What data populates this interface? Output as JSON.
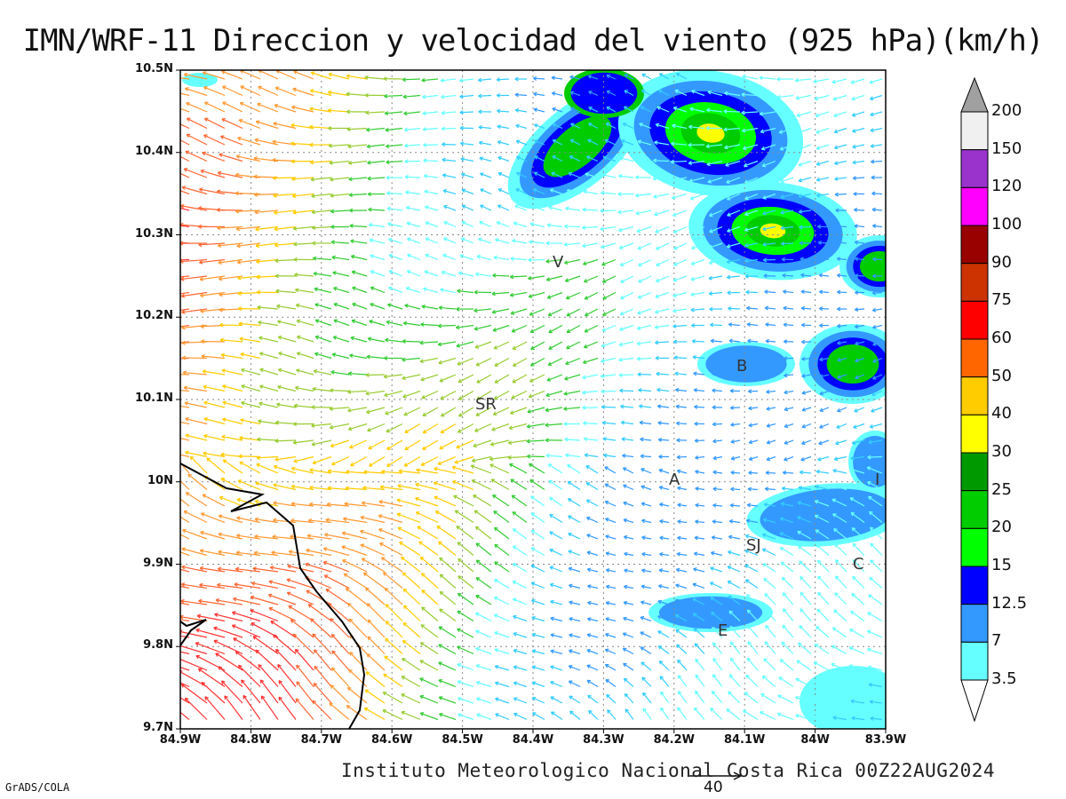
{
  "title": "IMN/WRF-11 Direccion y velocidad del viento (925 hPa)(km/h)",
  "footer": "Instituto Meteorologico Nacional Costa Rica 00Z22AUG2024",
  "credit": "GrADS/COLA",
  "reference_vector": {
    "label": "40"
  },
  "map": {
    "lat_ticks": [
      "10.5N",
      "10.4N",
      "10.3N",
      "10.2N",
      "10.1N",
      "10N",
      "9.9N",
      "9.8N",
      "9.7N"
    ],
    "lon_ticks": [
      "84.9W",
      "84.8W",
      "84.7W",
      "84.6W",
      "84.5W",
      "84.4W",
      "84.3W",
      "84.2W",
      "84.1W",
      "84W",
      "83.9W"
    ],
    "cities": [
      {
        "code": "V"
      },
      {
        "code": "SR"
      },
      {
        "code": "B"
      },
      {
        "code": "A"
      },
      {
        "code": "I"
      },
      {
        "code": "SJ"
      },
      {
        "code": "C"
      },
      {
        "code": "E"
      }
    ]
  },
  "colorbar": {
    "levels": [
      "200",
      "150",
      "120",
      "100",
      "90",
      "75",
      "60",
      "50",
      "40",
      "30",
      "25",
      "20",
      "15",
      "12.5",
      "7",
      "3.5"
    ],
    "colors": [
      "#a0a0a0",
      "#f0f0f0",
      "#9933cc",
      "#ff00ff",
      "#990000",
      "#cc3300",
      "#ff0000",
      "#ff6600",
      "#ffcc00",
      "#ffff00",
      "#009900",
      "#00cc00",
      "#00ff00",
      "#0000ff",
      "#3399ff",
      "#66ffff"
    ]
  }
}
